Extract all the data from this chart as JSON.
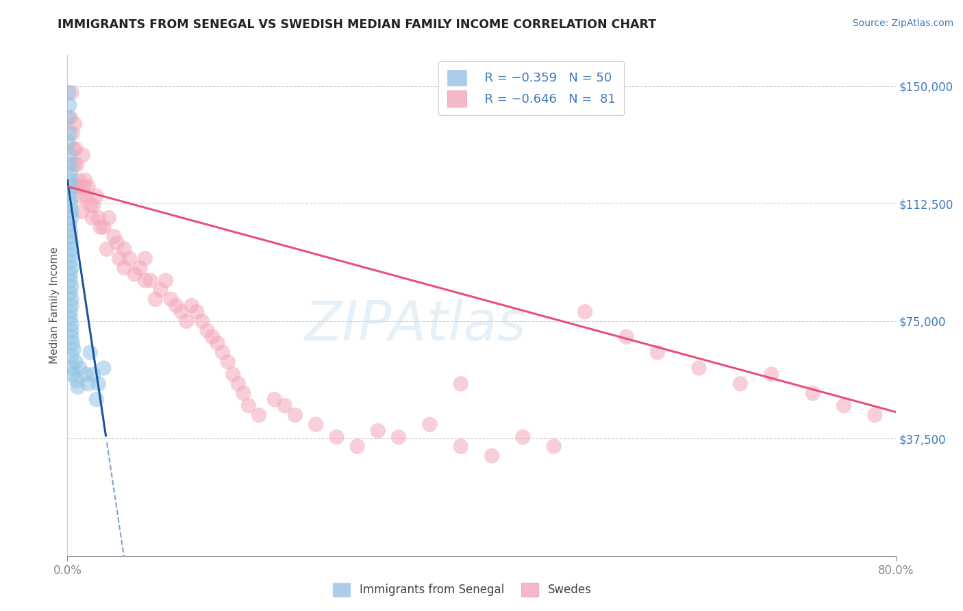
{
  "title": "IMMIGRANTS FROM SENEGAL VS SWEDISH MEDIAN FAMILY INCOME CORRELATION CHART",
  "source": "Source: ZipAtlas.com",
  "ylabel": "Median Family Income",
  "right_ytick_labels": [
    "$37,500",
    "$75,000",
    "$112,500",
    "$150,000"
  ],
  "right_ytick_values": [
    37500,
    75000,
    112500,
    150000
  ],
  "xlim": [
    0.0,
    0.8
  ],
  "ylim": [
    0,
    160000
  ],
  "blue_color": "#90c4e4",
  "pink_color": "#f4a8b8",
  "blue_line_color": "#1a52a0",
  "pink_line_color": "#e8507a",
  "legend_label_blue": "Immigrants from Senegal",
  "legend_label_pink": "Swedes",
  "watermark": "ZIPAtlas",
  "blue_scatter_x": [
    0.001,
    0.002,
    0.001,
    0.002,
    0.001,
    0.002,
    0.003,
    0.003,
    0.003,
    0.003,
    0.002,
    0.003,
    0.003,
    0.004,
    0.004,
    0.002,
    0.003,
    0.003,
    0.004,
    0.004,
    0.003,
    0.003,
    0.004,
    0.003,
    0.003,
    0.004,
    0.003,
    0.004,
    0.004,
    0.003,
    0.003,
    0.004,
    0.004,
    0.004,
    0.005,
    0.006,
    0.004,
    0.008,
    0.005,
    0.005,
    0.009,
    0.01,
    0.012,
    0.018,
    0.02,
    0.022,
    0.025,
    0.028,
    0.03,
    0.035
  ],
  "blue_scatter_y": [
    148000,
    144000,
    140000,
    135000,
    132000,
    128000,
    125000,
    122000,
    120000,
    118000,
    116000,
    114000,
    112000,
    110000,
    108000,
    106000,
    104000,
    102000,
    100000,
    98000,
    96000,
    94000,
    92000,
    90000,
    88000,
    86000,
    84000,
    82000,
    80000,
    78000,
    76000,
    74000,
    72000,
    70000,
    68000,
    66000,
    64000,
    62000,
    60000,
    58000,
    56000,
    54000,
    60000,
    58000,
    55000,
    65000,
    58000,
    50000,
    55000,
    60000
  ],
  "pink_scatter_x": [
    0.003,
    0.004,
    0.005,
    0.006,
    0.007,
    0.008,
    0.007,
    0.009,
    0.01,
    0.011,
    0.012,
    0.013,
    0.015,
    0.014,
    0.016,
    0.017,
    0.018,
    0.02,
    0.022,
    0.024,
    0.025,
    0.028,
    0.03,
    0.032,
    0.035,
    0.038,
    0.04,
    0.045,
    0.048,
    0.05,
    0.055,
    0.055,
    0.06,
    0.065,
    0.07,
    0.075,
    0.075,
    0.08,
    0.085,
    0.09,
    0.095,
    0.1,
    0.105,
    0.11,
    0.115,
    0.12,
    0.125,
    0.13,
    0.135,
    0.14,
    0.145,
    0.15,
    0.155,
    0.16,
    0.165,
    0.17,
    0.175,
    0.185,
    0.2,
    0.21,
    0.22,
    0.24,
    0.26,
    0.28,
    0.3,
    0.32,
    0.35,
    0.38,
    0.41,
    0.44,
    0.47,
    0.5,
    0.54,
    0.57,
    0.61,
    0.65,
    0.68,
    0.72,
    0.75,
    0.78,
    0.38
  ],
  "pink_scatter_y": [
    140000,
    148000,
    135000,
    130000,
    138000,
    130000,
    125000,
    125000,
    118000,
    120000,
    118000,
    115000,
    128000,
    110000,
    118000,
    120000,
    115000,
    118000,
    112000,
    108000,
    112000,
    115000,
    108000,
    105000,
    105000,
    98000,
    108000,
    102000,
    100000,
    95000,
    98000,
    92000,
    95000,
    90000,
    92000,
    95000,
    88000,
    88000,
    82000,
    85000,
    88000,
    82000,
    80000,
    78000,
    75000,
    80000,
    78000,
    75000,
    72000,
    70000,
    68000,
    65000,
    62000,
    58000,
    55000,
    52000,
    48000,
    45000,
    50000,
    48000,
    45000,
    42000,
    38000,
    35000,
    40000,
    38000,
    42000,
    35000,
    32000,
    38000,
    35000,
    78000,
    70000,
    65000,
    60000,
    55000,
    58000,
    52000,
    48000,
    45000,
    55000
  ],
  "blue_intercept": 120000,
  "blue_slope": -2200000,
  "pink_intercept": 118000,
  "pink_slope": -90000
}
